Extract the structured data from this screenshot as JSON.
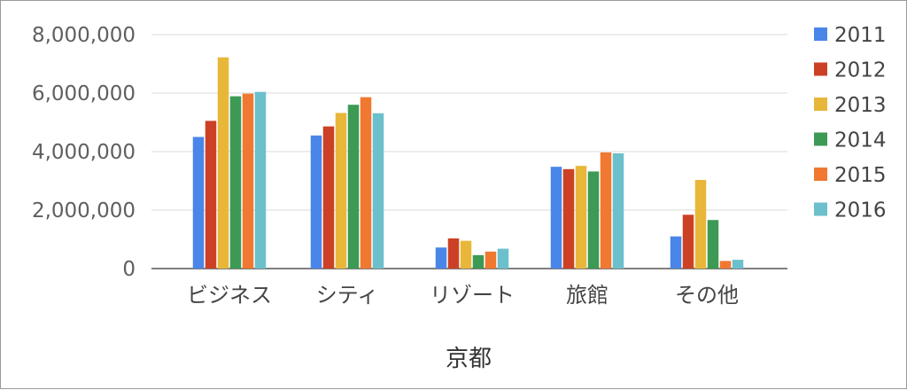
{
  "chart_data": {
    "type": "bar",
    "title": "",
    "xlabel": "京都",
    "ylabel": "",
    "categories": [
      "ビジネス",
      "シティ",
      "リゾート",
      "旅館",
      "その他"
    ],
    "series": [
      {
        "name": "2011",
        "color": "#4a86e8",
        "values": [
          4500000,
          4550000,
          720000,
          3480000,
          1100000
        ]
      },
      {
        "name": "2012",
        "color": "#cc4125",
        "values": [
          5050000,
          4860000,
          1030000,
          3400000,
          1840000
        ]
      },
      {
        "name": "2013",
        "color": "#e8b73a",
        "values": [
          7220000,
          5320000,
          950000,
          3510000,
          3030000
        ]
      },
      {
        "name": "2014",
        "color": "#3d9a54",
        "values": [
          5890000,
          5600000,
          460000,
          3320000,
          1660000
        ]
      },
      {
        "name": "2015",
        "color": "#f07830",
        "values": [
          5980000,
          5860000,
          580000,
          3970000,
          260000
        ]
      },
      {
        "name": "2016",
        "color": "#6cc0cc",
        "values": [
          6040000,
          5310000,
          680000,
          3940000,
          300000
        ]
      }
    ],
    "yticks": [
      0,
      2000000,
      4000000,
      6000000,
      8000000
    ],
    "ytick_labels": [
      "0",
      "2,000,000",
      "4,000,000",
      "6,000,000",
      "8,000,000"
    ],
    "ylim": [
      0,
      8000000
    ],
    "grid": true,
    "legend_position": "right"
  }
}
